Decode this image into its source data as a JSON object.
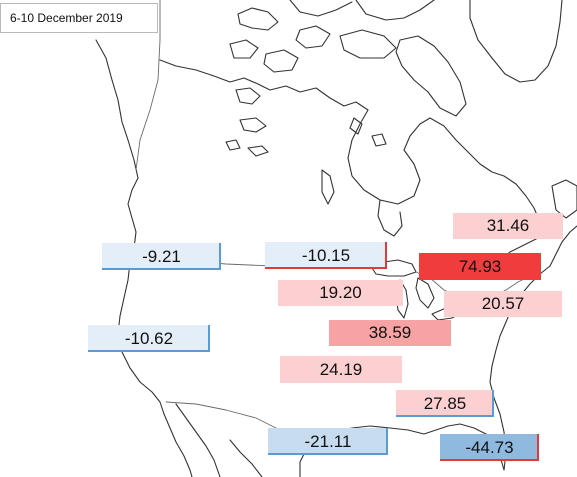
{
  "map": {
    "title": "6-10 December 2019",
    "colors": {
      "neg_light": "#e4eef8",
      "neg_mid": "#c8dcef",
      "neg_strong": "#8fb9df",
      "pos_light": "#fcd0d0",
      "pos_mid": "#f8a3a3",
      "pos_strong": "#f03c3c",
      "underline_blue": "#5b9bd5",
      "underline_red": "#e03a3a"
    },
    "labels": [
      {
        "id": "pacific-nw",
        "text": "-9.21",
        "value": -9.21,
        "fill": "neg_light",
        "accent": "underline_blue"
      },
      {
        "id": "northern-plains",
        "text": "-10.15",
        "value": -10.15,
        "fill": "neg_light",
        "accent": "underline_red"
      },
      {
        "id": "southwest",
        "text": "-10.62",
        "value": -10.62,
        "fill": "neg_light",
        "accent": "underline_blue"
      },
      {
        "id": "texas-gulf",
        "text": "-21.11",
        "value": -21.11,
        "fill": "neg_mid",
        "accent": "underline_blue"
      },
      {
        "id": "florida",
        "text": "-44.73",
        "value": -44.73,
        "fill": "neg_strong",
        "accent": "underline_red"
      },
      {
        "id": "new-england",
        "text": "31.46",
        "value": 31.46,
        "fill": "pos_light",
        "accent": ""
      },
      {
        "id": "great-lakes-east",
        "text": "74.93",
        "value": 74.93,
        "fill": "pos_strong",
        "accent": ""
      },
      {
        "id": "upper-midwest",
        "text": "19.20",
        "value": 19.2,
        "fill": "pos_light",
        "accent": ""
      },
      {
        "id": "mid-atlantic",
        "text": "20.57",
        "value": 20.57,
        "fill": "pos_light",
        "accent": ""
      },
      {
        "id": "ohio-valley",
        "text": "38.59",
        "value": 38.59,
        "fill": "pos_mid",
        "accent": ""
      },
      {
        "id": "central-plains",
        "text": "24.19",
        "value": 24.19,
        "fill": "pos_light",
        "accent": ""
      },
      {
        "id": "southeast",
        "text": "27.85",
        "value": 27.85,
        "fill": "pos_light",
        "accent": "underline_blue"
      }
    ]
  }
}
